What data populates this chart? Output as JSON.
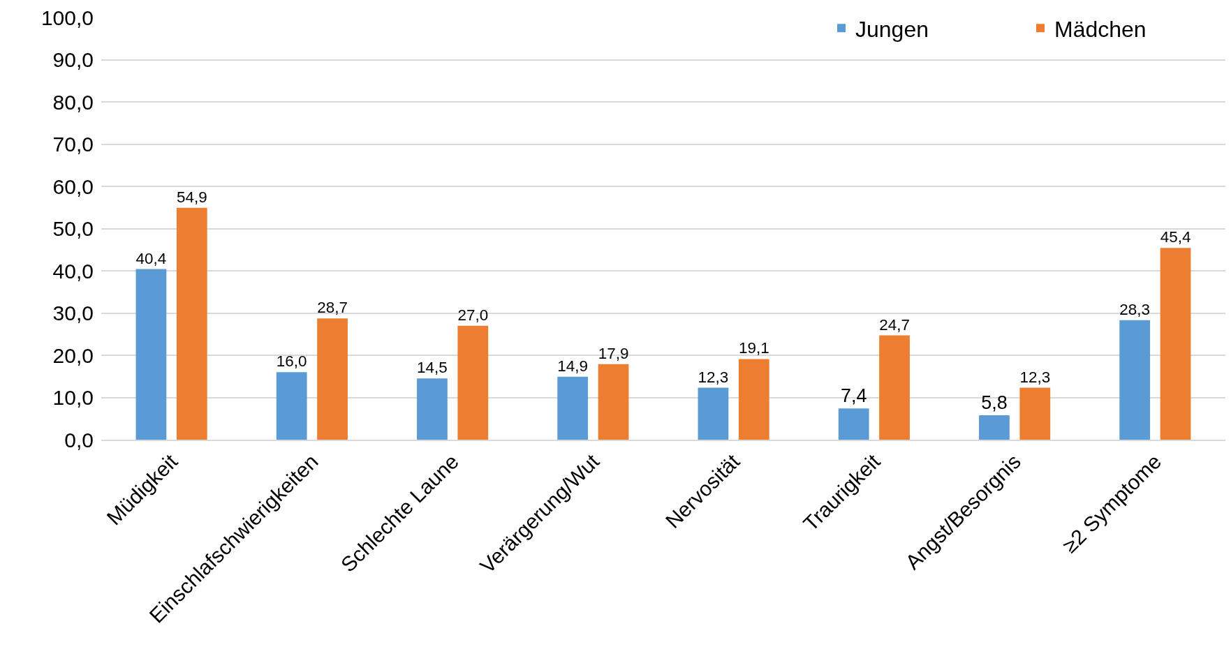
{
  "chart_data": {
    "type": "bar",
    "categories": [
      "Müdigkeit",
      "Einschlafschwierigkeiten",
      "Schlechte Laune",
      "Verärgerung/Wut",
      "Nervosität",
      "Traurigkeit",
      "Angst/Besorgnis",
      "≥2 Symptome"
    ],
    "series": [
      {
        "name": "Jungen",
        "color": "#5b9bd5",
        "values": [
          40.4,
          16.0,
          14.5,
          14.9,
          12.3,
          7.4,
          5.8,
          28.3
        ],
        "value_labels": [
          "40,4",
          "16,0",
          "14,5",
          "14,9",
          "12,3",
          "7,4",
          "5,8",
          "28,3"
        ]
      },
      {
        "name": "Mädchen",
        "color": "#ed7d31",
        "values": [
          54.9,
          28.7,
          27.0,
          17.9,
          19.1,
          24.7,
          12.3,
          45.4
        ],
        "value_labels": [
          "54,9",
          "28,7",
          "27,0",
          "17,9",
          "19,1",
          "24,7",
          "12,3",
          "45,4"
        ]
      }
    ],
    "ylim": [
      0,
      100
    ],
    "yticks": [
      {
        "value": 0,
        "label": "0,0"
      },
      {
        "value": 10,
        "label": "10,0"
      },
      {
        "value": 20,
        "label": "20,0"
      },
      {
        "value": 30,
        "label": "30,0"
      },
      {
        "value": 40,
        "label": "40,0"
      },
      {
        "value": 50,
        "label": "50,0"
      },
      {
        "value": 60,
        "label": "60,0"
      },
      {
        "value": 70,
        "label": "70,0"
      },
      {
        "value": 80,
        "label": "80,0"
      },
      {
        "value": 90,
        "label": "90,0"
      },
      {
        "value": 100,
        "label": "100,0"
      }
    ],
    "grid": "y",
    "legend": "top right"
  }
}
